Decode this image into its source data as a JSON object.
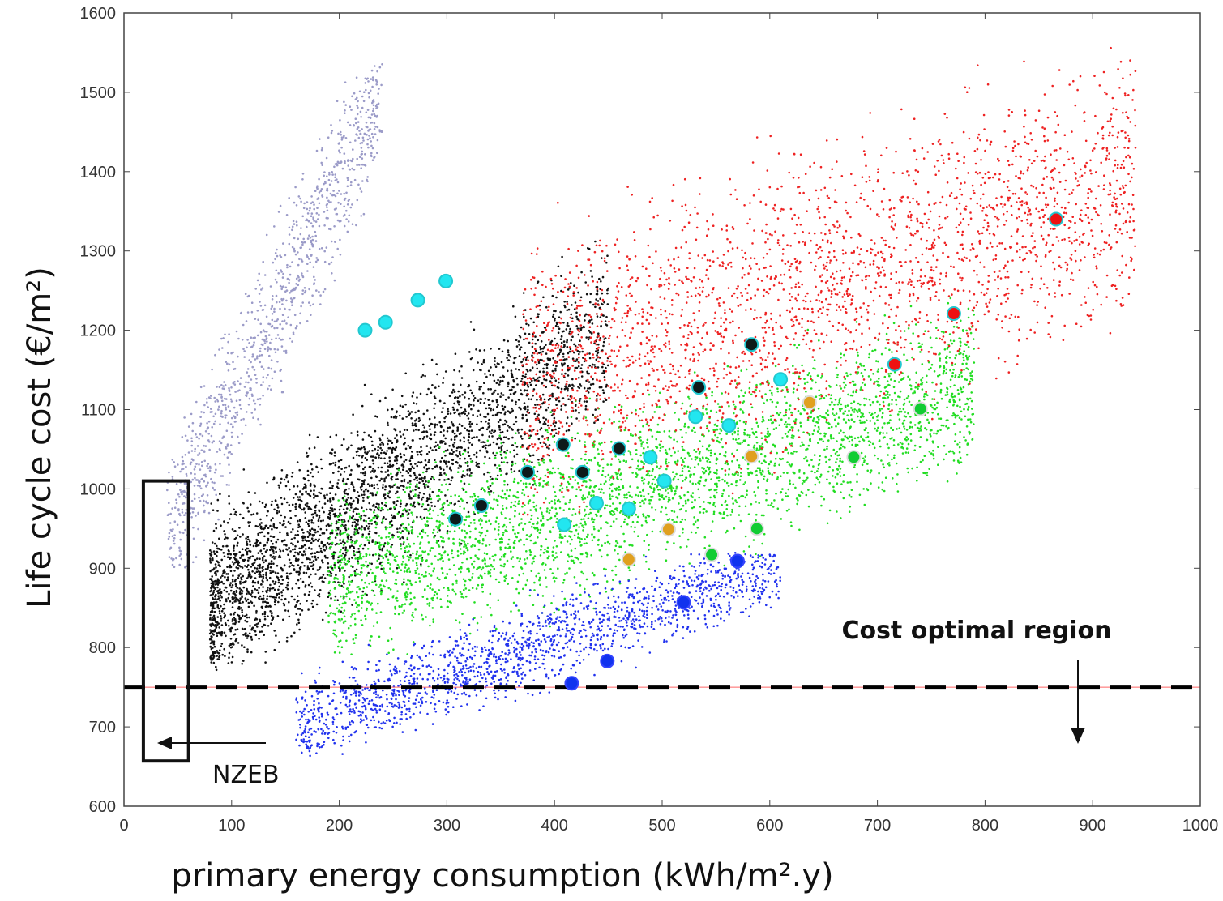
{
  "chart_data": {
    "type": "scatter",
    "title": "",
    "xlabel": "primary energy consumption (kWh/m².y)",
    "ylabel": "Life cycle cost (€/m²)",
    "xlim": [
      0,
      1000
    ],
    "ylim": [
      600,
      1600
    ],
    "xticks": [
      0,
      100,
      200,
      300,
      400,
      500,
      600,
      700,
      800,
      900,
      1000
    ],
    "yticks": [
      600,
      700,
      800,
      900,
      1000,
      1100,
      1200,
      1300,
      1400,
      1500,
      1600
    ],
    "grid": false,
    "colors": {
      "lavender": "#9b9bc8",
      "black": "#111111",
      "green": "#22dd22",
      "blue": "#2233ee",
      "red": "#ee2222",
      "cyan": "#22e6f0",
      "orange": "#e0a020",
      "pareto_green": "#11cc33",
      "pareto_blue": "#1133ee",
      "pareto_red": "#ee1111",
      "pareto_black": "#0d1a1a"
    },
    "cloud_regions": [
      {
        "color": "lavender",
        "x_range": [
          40,
          240
        ],
        "y_range": [
          900,
          1540
        ]
      },
      {
        "color": "black",
        "x_range": [
          80,
          450
        ],
        "y_range": [
          770,
          1400
        ]
      },
      {
        "color": "green",
        "x_range": [
          180,
          800
        ],
        "y_range": [
          790,
          1280
        ]
      },
      {
        "color": "blue",
        "x_range": [
          160,
          620
        ],
        "y_range": [
          660,
          920
        ]
      },
      {
        "color": "red",
        "x_range": [
          360,
          940
        ],
        "y_range": [
          900,
          1590
        ]
      }
    ],
    "highlighted_points": [
      {
        "x": 224,
        "y": 1200,
        "color": "cyan"
      },
      {
        "x": 243,
        "y": 1210,
        "color": "cyan"
      },
      {
        "x": 273,
        "y": 1238,
        "color": "cyan"
      },
      {
        "x": 299,
        "y": 1262,
        "color": "cyan"
      },
      {
        "x": 308,
        "y": 962,
        "color": "pareto_black"
      },
      {
        "x": 332,
        "y": 979,
        "color": "pareto_black"
      },
      {
        "x": 375,
        "y": 1021,
        "color": "pareto_black"
      },
      {
        "x": 408,
        "y": 1056,
        "color": "pareto_black"
      },
      {
        "x": 426,
        "y": 1021,
        "color": "pareto_black"
      },
      {
        "x": 460,
        "y": 1051,
        "color": "pareto_black"
      },
      {
        "x": 534,
        "y": 1128,
        "color": "pareto_black"
      },
      {
        "x": 583,
        "y": 1182,
        "color": "pareto_black"
      },
      {
        "x": 409,
        "y": 955,
        "color": "cyan"
      },
      {
        "x": 439,
        "y": 982,
        "color": "cyan"
      },
      {
        "x": 469,
        "y": 975,
        "color": "cyan"
      },
      {
        "x": 489,
        "y": 1040,
        "color": "cyan"
      },
      {
        "x": 502,
        "y": 1010,
        "color": "cyan"
      },
      {
        "x": 531,
        "y": 1091,
        "color": "cyan"
      },
      {
        "x": 562,
        "y": 1080,
        "color": "cyan"
      },
      {
        "x": 610,
        "y": 1138,
        "color": "cyan"
      },
      {
        "x": 469,
        "y": 911,
        "color": "orange"
      },
      {
        "x": 506,
        "y": 949,
        "color": "orange"
      },
      {
        "x": 583,
        "y": 1041,
        "color": "orange"
      },
      {
        "x": 637,
        "y": 1109,
        "color": "orange"
      },
      {
        "x": 546,
        "y": 917,
        "color": "pareto_green"
      },
      {
        "x": 588,
        "y": 950,
        "color": "pareto_green"
      },
      {
        "x": 678,
        "y": 1040,
        "color": "pareto_green"
      },
      {
        "x": 740,
        "y": 1101,
        "color": "pareto_green"
      },
      {
        "x": 416,
        "y": 755,
        "color": "pareto_blue"
      },
      {
        "x": 449,
        "y": 783,
        "color": "pareto_blue"
      },
      {
        "x": 520,
        "y": 857,
        "color": "pareto_blue"
      },
      {
        "x": 570,
        "y": 909,
        "color": "pareto_blue"
      },
      {
        "x": 716,
        "y": 1157,
        "color": "pareto_red"
      },
      {
        "x": 771,
        "y": 1221,
        "color": "pareto_red"
      },
      {
        "x": 866,
        "y": 1340,
        "color": "pareto_red"
      }
    ],
    "reference_line": {
      "y": 750,
      "style": "dashed"
    },
    "annotations": {
      "cost_optimal": {
        "text": "Cost optimal region"
      },
      "nzeb": {
        "text": "NZEB",
        "box_x": [
          18,
          60
        ],
        "box_y": [
          657,
          1010
        ]
      }
    }
  }
}
